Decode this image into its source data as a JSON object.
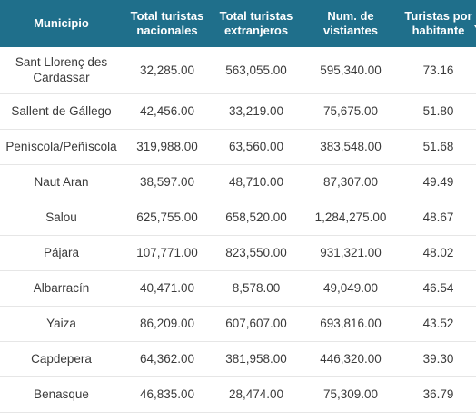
{
  "table": {
    "headers": [
      {
        "label": "Municipio"
      },
      {
        "label": "Total turistas nacionales"
      },
      {
        "label": "Total turistas extranjeros"
      },
      {
        "label": "Num. de vistiantes"
      },
      {
        "label": "Turistas por habitante"
      }
    ],
    "sort_icon": "triangle-down-icon",
    "header_color": "#1f6f8b",
    "rows": [
      {
        "municipio": "Sant Llorenç des Cardassar",
        "nacionales": "32,285.00",
        "extranjeros": "563,055.00",
        "visitantes": "595,340.00",
        "por_habitante": "73.16"
      },
      {
        "municipio": "Sallent de Gállego",
        "nacionales": "42,456.00",
        "extranjeros": "33,219.00",
        "visitantes": "75,675.00",
        "por_habitante": "51.80"
      },
      {
        "municipio": "Peníscola/Peñíscola",
        "nacionales": "319,988.00",
        "extranjeros": "63,560.00",
        "visitantes": "383,548.00",
        "por_habitante": "51.68"
      },
      {
        "municipio": "Naut Aran",
        "nacionales": "38,597.00",
        "extranjeros": "48,710.00",
        "visitantes": "87,307.00",
        "por_habitante": "49.49"
      },
      {
        "municipio": "Salou",
        "nacionales": "625,755.00",
        "extranjeros": "658,520.00",
        "visitantes": "1,284,275.00",
        "por_habitante": "48.67"
      },
      {
        "municipio": "Pájara",
        "nacionales": "107,771.00",
        "extranjeros": "823,550.00",
        "visitantes": "931,321.00",
        "por_habitante": "48.02"
      },
      {
        "municipio": "Albarracín",
        "nacionales": "40,471.00",
        "extranjeros": "8,578.00",
        "visitantes": "49,049.00",
        "por_habitante": "46.54"
      },
      {
        "municipio": "Yaiza",
        "nacionales": "86,209.00",
        "extranjeros": "607,607.00",
        "visitantes": "693,816.00",
        "por_habitante": "43.52"
      },
      {
        "municipio": "Capdepera",
        "nacionales": "64,362.00",
        "extranjeros": "381,958.00",
        "visitantes": "446,320.00",
        "por_habitante": "39.30"
      },
      {
        "municipio": "Benasque",
        "nacionales": "46,835.00",
        "extranjeros": "28,474.00",
        "visitantes": "75,309.00",
        "por_habitante": "36.79"
      }
    ]
  }
}
